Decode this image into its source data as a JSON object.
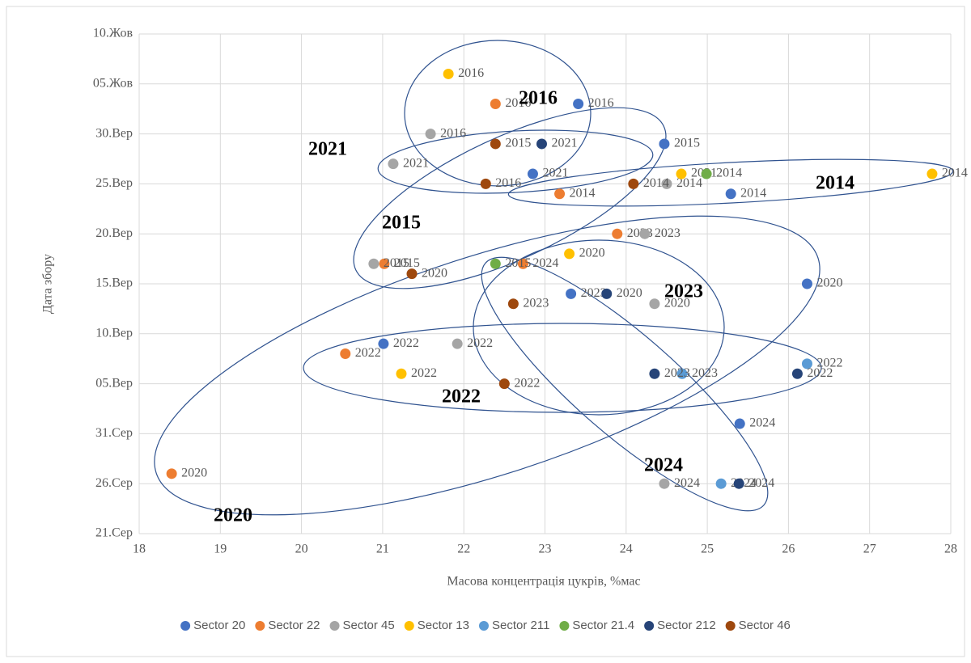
{
  "chart_data": {
    "type": "scatter",
    "xlabel": "Масова концентрація цукрів, %мас",
    "ylabel": "Дата збору",
    "xlim": [
      18,
      28
    ],
    "xticks": [
      18,
      19,
      20,
      21,
      22,
      23,
      24,
      25,
      26,
      27,
      28
    ],
    "ylim": [
      233,
      283
    ],
    "yticks": [
      {
        "value": 233,
        "label": "21.Сер"
      },
      {
        "value": 238,
        "label": "26.Сер"
      },
      {
        "value": 243,
        "label": "31.Сер"
      },
      {
        "value": 248,
        "label": "05.Вер"
      },
      {
        "value": 253,
        "label": "10.Вер"
      },
      {
        "value": 258,
        "label": "15.Вер"
      },
      {
        "value": 263,
        "label": "20.Вер"
      },
      {
        "value": 268,
        "label": "25.Вер"
      },
      {
        "value": 273,
        "label": "30.Вер"
      },
      {
        "value": 278,
        "label": "05.Жов"
      },
      {
        "value": 283,
        "label": "10.Жов"
      }
    ],
    "grid": true,
    "legend": "bottom",
    "series": [
      {
        "name": "Sector 20",
        "color": "#4472c4",
        "x": [
          23.41,
          24.47,
          22.85,
          25.29,
          26.23,
          23.32,
          21.01,
          25.4
        ],
        "y": [
          276,
          272,
          269,
          267,
          258,
          257,
          252,
          244
        ],
        "labels": [
          "2016",
          "2015",
          "2021",
          "2014",
          "2020",
          "2023",
          "2022",
          "2024"
        ]
      },
      {
        "name": "Sector 22",
        "color": "#ed7d31",
        "x": [
          22.39,
          23.18,
          23.89,
          21.02,
          22.73,
          20.54,
          18.4
        ],
        "y": [
          276,
          267,
          263,
          260,
          260,
          251,
          239
        ],
        "labels": [
          "2016",
          "2014",
          "2023",
          "2015",
          "2024",
          "2022",
          "2020"
        ]
      },
      {
        "name": "Sector 45",
        "color": "#a5a5a5",
        "x": [
          21.59,
          21.13,
          24.5,
          24.23,
          20.89,
          24.35,
          21.92,
          24.47
        ],
        "y": [
          273,
          270,
          268,
          263,
          260,
          256,
          252,
          238
        ],
        "labels": [
          "2016",
          "2021",
          "2014",
          "2023",
          "2015",
          "2020",
          "2022",
          "2024"
        ]
      },
      {
        "name": "Sector 13",
        "color": "#ffc000",
        "x": [
          21.81,
          24.68,
          27.77,
          23.3,
          21.23
        ],
        "y": [
          279,
          269,
          269,
          261,
          249
        ],
        "labels": [
          "2016",
          "2021",
          "2014",
          "2020",
          "2022"
        ]
      },
      {
        "name": "Sector 211",
        "color": "#5b9bd5",
        "x": [
          26.23,
          24.69,
          25.17
        ],
        "y": [
          250,
          249,
          238
        ],
        "labels": [
          "2022",
          "2023",
          "2024"
        ]
      },
      {
        "name": "Sector 21.4",
        "color": "#70ad47",
        "x": [
          24.99,
          22.39
        ],
        "y": [
          269,
          260
        ],
        "labels": [
          "2014",
          "2015"
        ]
      },
      {
        "name": "Sector 212",
        "color": "#264478",
        "x": [
          22.96,
          23.76,
          24.35,
          26.11,
          25.39
        ],
        "y": [
          272,
          257,
          249,
          249,
          238
        ],
        "labels": [
          "2021",
          "2020",
          "2023",
          "2022",
          "2024"
        ]
      },
      {
        "name": "Sector 46",
        "color": "#9e480e",
        "x": [
          22.39,
          22.27,
          24.09,
          21.36,
          22.61,
          22.5
        ],
        "y": [
          272,
          268,
          268,
          259,
          256,
          248
        ],
        "labels": [
          "2015",
          "2016",
          "2014",
          "2020",
          "2023",
          "2022"
        ]
      }
    ],
    "annotations": [
      "2016",
      "2021",
      "2014",
      "2015",
      "2023",
      "2022",
      "2024",
      "2020"
    ]
  }
}
